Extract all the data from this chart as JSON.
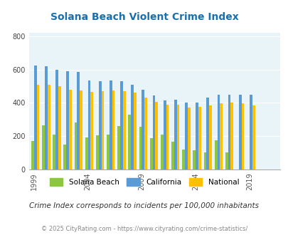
{
  "title": "Solana Beach Violent Crime Index",
  "subtitle": "Crime Index corresponds to incidents per 100,000 inhabitants",
  "footer": "© 2025 CityRating.com - https://www.cityrating.com/crime-statistics/",
  "years": [
    1999,
    2000,
    2001,
    2002,
    2003,
    2004,
    2005,
    2006,
    2007,
    2008,
    2009,
    2010,
    2011,
    2012,
    2013,
    2014,
    2015,
    2016,
    2017,
    2018,
    2019,
    2020,
    2021
  ],
  "solana_beach": [
    170,
    265,
    210,
    150,
    280,
    190,
    205,
    210,
    260,
    330,
    255,
    185,
    210,
    165,
    120,
    115,
    100,
    175,
    100,
    0,
    0,
    0,
    0
  ],
  "california": [
    625,
    620,
    600,
    590,
    585,
    535,
    530,
    535,
    530,
    510,
    480,
    445,
    415,
    420,
    400,
    400,
    430,
    450,
    450,
    450,
    450,
    0,
    0
  ],
  "national": [
    510,
    510,
    500,
    480,
    475,
    465,
    470,
    475,
    470,
    460,
    430,
    405,
    390,
    390,
    370,
    375,
    385,
    395,
    400,
    395,
    385,
    0,
    0
  ],
  "bar_width": 0.25,
  "ylim": [
    0,
    820
  ],
  "yticks": [
    0,
    200,
    400,
    600,
    800
  ],
  "xtick_years": [
    1999,
    2004,
    2009,
    2014,
    2019
  ],
  "colors": {
    "solana_beach": "#8dc63f",
    "california": "#5b9bd5",
    "national": "#ffc000"
  },
  "bg_color": "#e8f4f8",
  "title_color": "#1a6fad",
  "subtitle_color": "#333333",
  "footer_color": "#888888",
  "legend_labels": [
    "Solana Beach",
    "California",
    "National"
  ]
}
